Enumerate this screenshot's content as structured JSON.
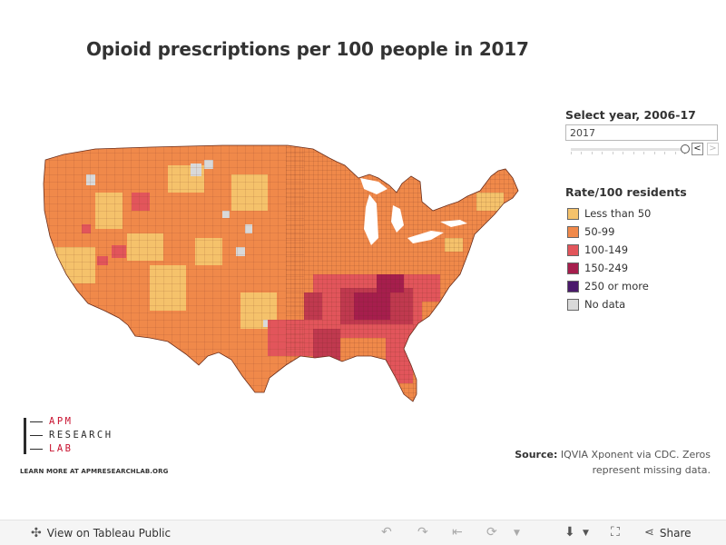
{
  "title": "Opioid prescriptions per 100 people in 2017",
  "year_filter": {
    "label": "Select year, 2006-17",
    "value": "2017",
    "prev_label": "<",
    "next_label": ">"
  },
  "legend": {
    "title": "Rate/100 residents",
    "items": [
      {
        "label": "Less than 50",
        "color": "#f5c26b"
      },
      {
        "label": "50-99",
        "color": "#f0894a"
      },
      {
        "label": "100-149",
        "color": "#e2555b"
      },
      {
        "label": "150-249",
        "color": "#a61e4d"
      },
      {
        "label": "250 or more",
        "color": "#4a1a6b"
      },
      {
        "label": "No data",
        "color": "#d9d9d9"
      }
    ]
  },
  "logo": {
    "line1": "APM",
    "line2": "RESEARCH",
    "line3": "LAB"
  },
  "learn_more": "LEARN MORE AT APMRESEARCHLAB.ORG",
  "source": {
    "label": "Source:",
    "text": "IQVIA Xponent via CDC. Zeros represent missing data."
  },
  "footer": {
    "view_label": "View on Tableau Public",
    "share_label": "Share"
  }
}
